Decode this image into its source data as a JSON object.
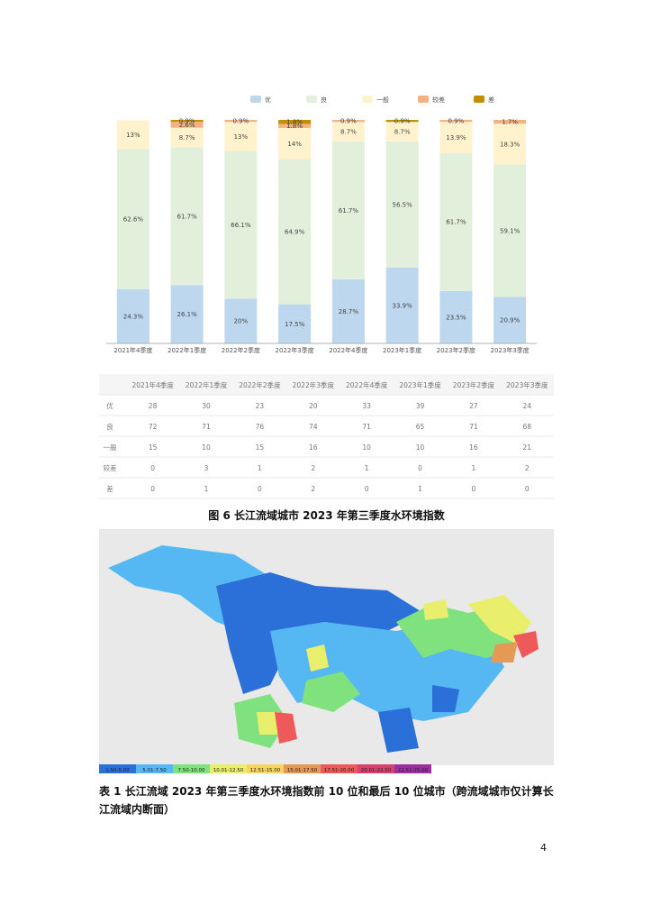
{
  "chart_data": {
    "type": "stacked_bar",
    "categories": [
      "2021年4季度",
      "2022年1季度",
      "2022年2季度",
      "2022年3季度",
      "2022年4季度",
      "2023年1季度",
      "2023年2季度",
      "2023年3季度"
    ],
    "ylim": [
      0,
      100
    ],
    "series": [
      {
        "name": "优",
        "color": "#bdd7ee",
        "values": [
          24.3,
          26.1,
          20,
          17.5,
          28.7,
          33.9,
          23.5,
          20.9
        ],
        "value_labels": [
          "24.3%",
          "26.1%",
          "20%",
          "17.5%",
          "28.7%",
          "33.9%",
          "23.5%",
          "20.9%"
        ]
      },
      {
        "name": "良",
        "color": "#e2efda",
        "values": [
          62.6,
          61.7,
          66.1,
          64.9,
          61.7,
          56.5,
          61.7,
          59.1
        ],
        "value_labels": [
          "62.6%",
          "61.7%",
          "66.1%",
          "64.9%",
          "61.7%",
          "56.5%",
          "61.7%",
          "59.1%"
        ]
      },
      {
        "name": "一般",
        "color": "#fff2cc",
        "values": [
          13,
          8.7,
          13,
          14,
          8.7,
          8.7,
          13.9,
          18.3
        ],
        "value_labels": [
          "13%",
          "8.7%",
          "13%",
          "14%",
          "8.7%",
          "8.7%",
          "13.9%",
          "18.3%"
        ]
      },
      {
        "name": "较差",
        "color": "#f4b183",
        "values": [
          0,
          2.6,
          0.9,
          1.8,
          0.9,
          0,
          0.9,
          1.7
        ],
        "value_labels": [
          null,
          "2.6%",
          "0.9%",
          "1.8%",
          "0.9%",
          null,
          "0.9%",
          "1.7%"
        ]
      },
      {
        "name": "差",
        "color": "#bf9000",
        "values": [
          0,
          0.9,
          0,
          1.8,
          0,
          0.9,
          0,
          0
        ],
        "value_labels": [
          null,
          "0.9%",
          null,
          "1.8%",
          null,
          "0.9%",
          null,
          null
        ]
      }
    ]
  },
  "table": {
    "header": [
      "2021年4季度",
      "2022年1季度",
      "2022年2季度",
      "2022年3季度",
      "2022年4季度",
      "2023年1季度",
      "2023年2季度",
      "2023年3季度"
    ],
    "rows": [
      [
        "优",
        "28",
        "30",
        "23",
        "20",
        "33",
        "39",
        "27",
        "24"
      ],
      [
        "良",
        "72",
        "71",
        "76",
        "74",
        "71",
        "65",
        "71",
        "68"
      ],
      [
        "一般",
        "15",
        "10",
        "15",
        "16",
        "10",
        "10",
        "16",
        "21"
      ],
      [
        "较差",
        "0",
        "3",
        "1",
        "2",
        "1",
        "0",
        "1",
        "2"
      ],
      [
        "差",
        "0",
        "1",
        "0",
        "2",
        "0",
        "1",
        "0",
        "0"
      ]
    ]
  },
  "figure_caption": "图 6 长江流域城市 2023 年第三季度水环境指数",
  "map": {
    "legend": [
      {
        "label": "1.50-5.00",
        "color": "#2b6fd9"
      },
      {
        "label": "5.01-7.50",
        "color": "#55b8f2"
      },
      {
        "label": "7.50-10.00",
        "color": "#80e27e"
      },
      {
        "label": "10.01-12.50",
        "color": "#e9ee6c"
      },
      {
        "label": "12.51-15.00",
        "color": "#f7d462"
      },
      {
        "label": "15.01-17.50",
        "color": "#e49a56"
      },
      {
        "label": "17.51-20.00",
        "color": "#ee5a5a"
      },
      {
        "label": "20.01-22.50",
        "color": "#d8416e"
      },
      {
        "label": "22.51-25.00",
        "color": "#9c2fa0"
      }
    ]
  },
  "table_caption": "表 1 长江流域 2023 年第三季度水环境指数前 10 位和最后 10 位城市（跨流域城市仅计算长江流域内断面）",
  "page_number": "4"
}
